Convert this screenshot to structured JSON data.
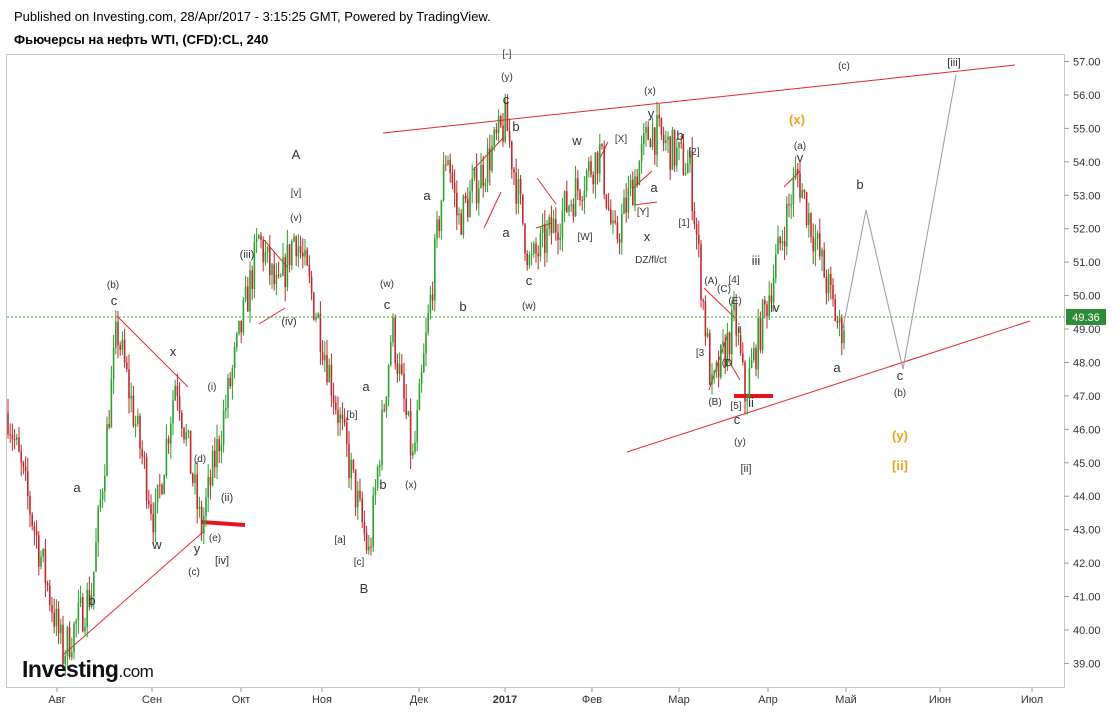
{
  "header": {
    "published": "Published on Investing.com, 28/Apr/2017 - 3:15:25 GMT, Powered by TradingView.",
    "symbol": "Фьючерсы на нефть WTI, (CFD):CL, 240"
  },
  "logo": {
    "brand": "Investing",
    "suffix": ".com"
  },
  "colors": {
    "up": "#2e9e2e",
    "down": "#c0282c",
    "trend_line": "#e8262b",
    "price_line": "#2db52d",
    "price_badge": "#2e8b3a",
    "projection": "#9a9a9a",
    "alt_count": "#f0a020",
    "support_bar": "#e8141b"
  },
  "chart_data": {
    "type": "candlestick",
    "title": "Фьючерсы на нефть WTI, (CFD):CL, 240",
    "timeframe": "240",
    "x_axis_labels": [
      "Авг",
      "Сен",
      "Окт",
      "Ноя",
      "Дек",
      "2017",
      "Фев",
      "Мар",
      "Апр",
      "Май",
      "Июн",
      "Июл"
    ],
    "y_ticks": [
      "39.00",
      "40.00",
      "41.00",
      "42.00",
      "43.00",
      "44.00",
      "45.00",
      "46.00",
      "47.00",
      "48.00",
      "49.00",
      "50.00",
      "51.00",
      "52.00",
      "53.00",
      "54.00",
      "55.00",
      "56.00",
      "57.00"
    ],
    "ylim": [
      38.5,
      57.2
    ],
    "last_price": "49.36",
    "price_path": [
      [
        "Авг",
        46.5
      ],
      [
        "Авг",
        39.3
      ],
      [
        "Авг",
        41.2
      ],
      [
        "Сен",
        49.0
      ],
      [
        "Сен",
        43.2
      ],
      [
        "Сен",
        47.6
      ],
      [
        "Сен",
        43.0
      ],
      [
        "Окт",
        51.7
      ],
      [
        "Окт",
        50.0
      ],
      [
        "Окт",
        51.9
      ],
      [
        "Ноя",
        49.3
      ],
      [
        "Ноя",
        42.2
      ],
      [
        "Ноя",
        49.1
      ],
      [
        "Дек",
        45.0
      ],
      [
        "Дек",
        54.5
      ],
      [
        "Дек",
        52.2
      ],
      [
        "2017",
        55.2
      ],
      [
        "2017",
        50.9
      ],
      [
        "Фев",
        54.3
      ],
      [
        "Фев",
        51.5
      ],
      [
        "Фев",
        55.0
      ],
      [
        "Мар",
        53.8
      ],
      [
        "Мар",
        47.1
      ],
      [
        "Мар",
        49.3
      ],
      [
        "Апр",
        47.0
      ],
      [
        "Апр",
        53.7
      ],
      [
        "Май",
        48.9
      ],
      [
        "Май",
        49.36
      ]
    ],
    "wave_labels": [
      "(b)",
      "c",
      "x",
      "w",
      "y",
      "(c)",
      "(e)",
      "[iv]",
      "(d)",
      "(ii)",
      "(i)",
      "a",
      "b",
      "A",
      "[v]",
      "(v)",
      "(iii)",
      "(iv)",
      "(w)",
      "c",
      "a",
      "[b]",
      "[a]",
      "[c]",
      "B",
      "b",
      "(x)",
      "a",
      "b",
      "[-]",
      "(y)",
      "c",
      "b",
      "a",
      "c",
      "(w)",
      "w",
      "[W]",
      "(x)",
      "[X]",
      "y",
      "a",
      "[Y]",
      "x",
      "DZ/fl/ct",
      "b",
      "[2]",
      "[1]",
      "(A)",
      "(C)",
      "[4]",
      "(E)",
      "[3",
      "(D",
      "i",
      "(B)",
      "[5]",
      "ii",
      "c",
      "(y)",
      "[ii]",
      "iii",
      "iv",
      "(a)",
      "v",
      "a",
      "(c)",
      "[iii]",
      "b",
      "c",
      "(b)"
    ],
    "alt_labels": [
      "(x)",
      "(y)",
      "[ii]"
    ]
  }
}
